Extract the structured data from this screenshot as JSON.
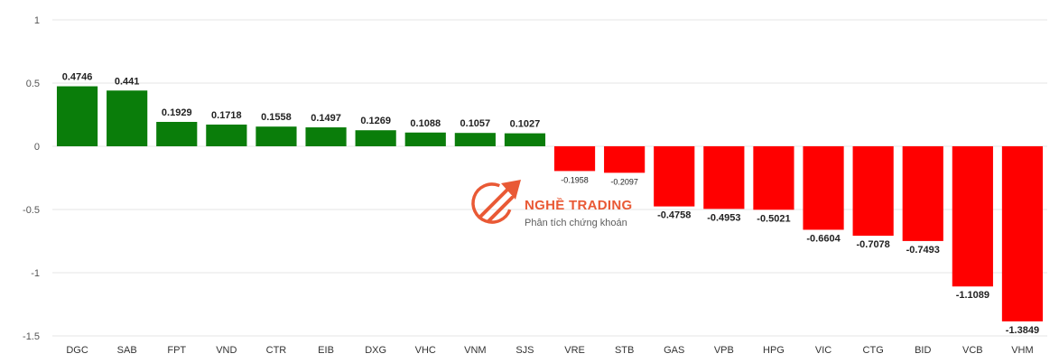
{
  "chart_data": {
    "type": "bar",
    "categories": [
      "DGC",
      "SAB",
      "FPT",
      "VND",
      "CTR",
      "EIB",
      "DXG",
      "VHC",
      "VNM",
      "SJS",
      "VRE",
      "STB",
      "GAS",
      "VPB",
      "HPG",
      "VIC",
      "CTG",
      "BID",
      "VCB",
      "VHM"
    ],
    "values": [
      0.4746,
      0.441,
      0.1929,
      0.1718,
      0.1558,
      0.1497,
      0.1269,
      0.1088,
      0.1057,
      0.1027,
      -0.1958,
      -0.2097,
      -0.4758,
      -0.4953,
      -0.5021,
      -0.6604,
      -0.7078,
      -0.7493,
      -1.1089,
      -1.3849
    ],
    "labels": [
      "0.4746",
      "0.441",
      "0.1929",
      "0.1718",
      "0.1558",
      "0.1497",
      "0.1269",
      "0.1088",
      "0.1057",
      "0.1027",
      "-0.1958",
      "-0.2097",
      "-0.4758",
      "-0.4953",
      "-0.5021",
      "-0.6604",
      "-0.7078",
      "-0.7493",
      "-1.1089",
      "-1.3849"
    ],
    "yticks": [
      "1",
      "0.5",
      "0",
      "-0.5",
      "-1",
      "-1.5"
    ],
    "ylim": [
      -1.5,
      1
    ],
    "grid": true,
    "colors": {
      "positive": "#0a7d0a",
      "negative": "#ff0000",
      "grid": "#e6e6e6"
    }
  },
  "watermark": {
    "title": "NGHỀ TRADING",
    "subtitle": "Phân tích chứng khoán",
    "icon": "trading-logo-icon",
    "color": "#e8512b"
  }
}
